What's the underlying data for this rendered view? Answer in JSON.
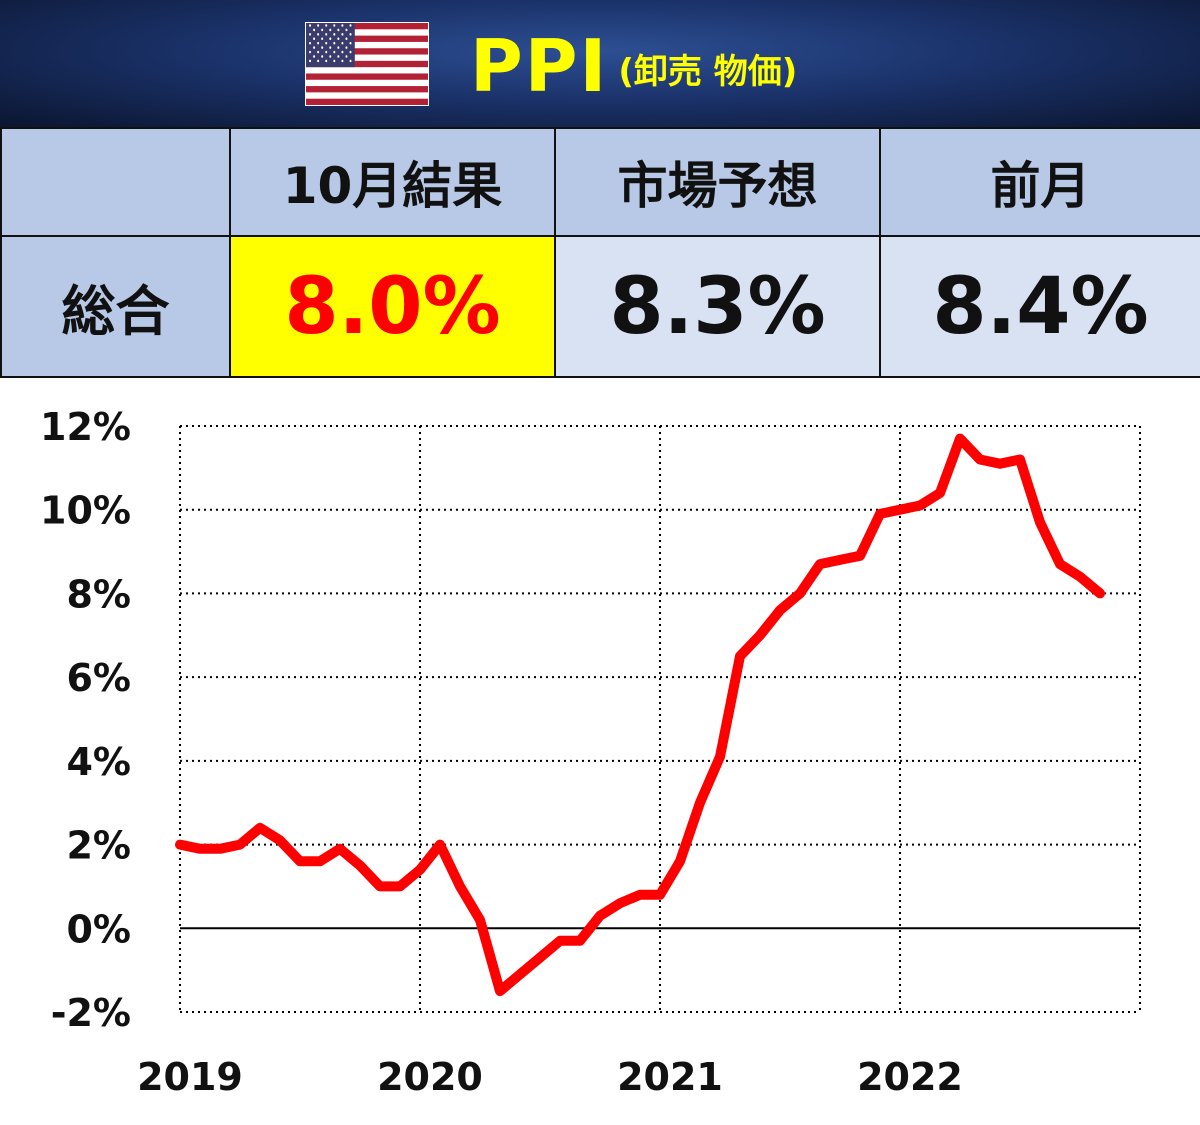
{
  "header": {
    "title": "PPI",
    "subtitle": "(卸売 物価)",
    "flag_icon": "us-flag-icon"
  },
  "table": {
    "headers": [
      "",
      "10月結果",
      "市場予想",
      "前月"
    ],
    "row_label": "総合",
    "result": "8.0%",
    "forecast": "8.3%",
    "previous": "8.4%"
  },
  "colors": {
    "header_bg": "#1b336b",
    "title": "#ffff00",
    "cell_bg": "#b7c9e6",
    "value_cell_bg": "#d9e2f2",
    "result_bg": "#ffff00",
    "result_text": "#ff0000",
    "line": "#ff0000"
  },
  "chart_data": {
    "type": "line",
    "title": "",
    "xlabel": "",
    "ylabel": "",
    "ylim": [
      -2,
      12
    ],
    "yticks": [
      "12%",
      "10%",
      "8%",
      "6%",
      "4%",
      "2%",
      "0%",
      "-2%"
    ],
    "xticks": [
      "2019",
      "2020",
      "2021",
      "2022"
    ],
    "grid": true,
    "series": [
      {
        "values": [
          2.0,
          1.9,
          1.9,
          2.0,
          2.4,
          2.1,
          1.6,
          1.6,
          1.9,
          1.5,
          1.0,
          1.0,
          1.4,
          2.0,
          1.0,
          0.2,
          -1.5,
          -1.1,
          -0.7,
          -0.3,
          -0.3,
          0.3,
          0.6,
          0.8,
          0.8,
          1.6,
          3.0,
          4.1,
          6.5,
          7.0,
          7.6,
          8.0,
          8.7,
          8.8,
          8.9,
          9.9,
          10.0,
          10.1,
          10.4,
          11.7,
          11.2,
          11.1,
          11.2,
          9.7,
          8.7,
          8.4,
          8.0
        ]
      }
    ]
  }
}
